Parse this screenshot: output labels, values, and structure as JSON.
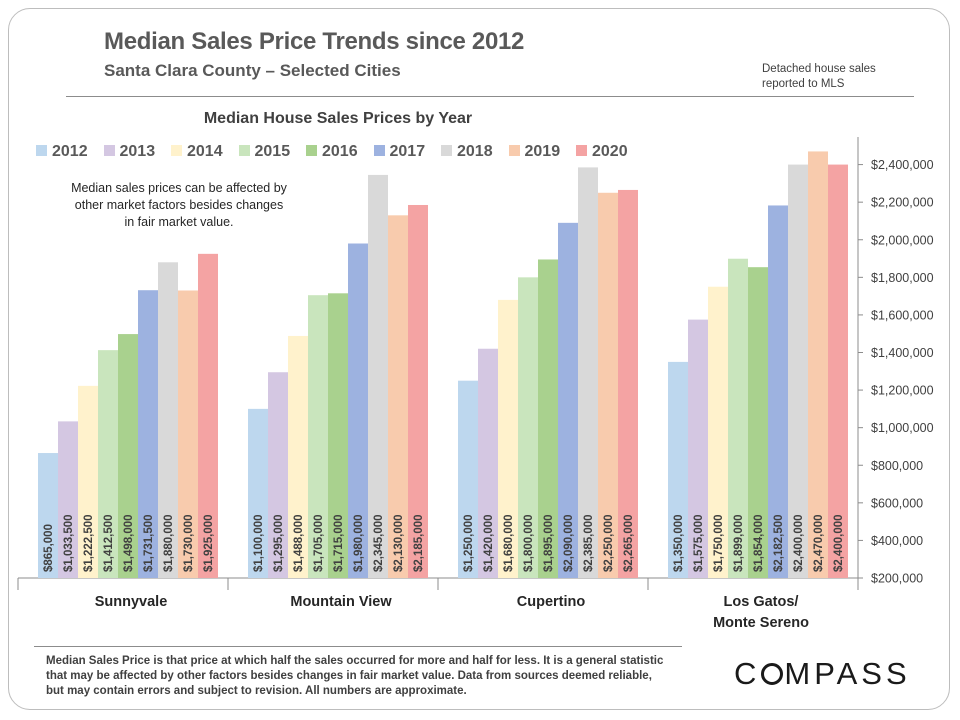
{
  "header": {
    "title": "Median Sales Price Trends since 2012",
    "subtitle": "Santa Clara County – Selected Cities",
    "note_line1": "Detached house sales",
    "note_line2": "reported to MLS"
  },
  "annotation": {
    "line1": "Median sales prices can be affected by",
    "line2": "other market factors besides changes",
    "line3": "in fair market value."
  },
  "footer": {
    "footnote": "Median Sales Price is that price at which half the sales occurred for more and half for less. It is a general statistic that may be affected by other factors besides changes in fair market value. Data from sources deemed reliable, but may contain errors and subject to revision.  All numbers are approximate.",
    "brand": "COMPASS"
  },
  "chart_data": {
    "type": "bar",
    "title": "Median House Sales Prices by Year",
    "categories": [
      "Sunnyvale",
      "Mountain View",
      "Cupertino",
      "Los Gatos/\nMonte Sereno"
    ],
    "series": [
      {
        "name": "2012",
        "color": "#bdd7ee",
        "values": [
          865000,
          1100000,
          1250000,
          1350000
        ],
        "labels": [
          "$865,000",
          "$1,100,000",
          "$1,250,000",
          "$1,350,000"
        ]
      },
      {
        "name": "2013",
        "color": "#d4c7e2",
        "values": [
          1033500,
          1295000,
          1420000,
          1575000
        ],
        "labels": [
          "$1,033,500",
          "$1,295,000",
          "$1,420,000",
          "$1,575,000"
        ]
      },
      {
        "name": "2014",
        "color": "#fff2cc",
        "values": [
          1222500,
          1488000,
          1680000,
          1750000
        ],
        "labels": [
          "$1,222,500",
          "$1,488,000",
          "$1,680,000",
          "$1,750,000"
        ]
      },
      {
        "name": "2015",
        "color": "#c9e5bd",
        "values": [
          1412500,
          1705000,
          1800000,
          1899000
        ],
        "labels": [
          "$1,412,500",
          "$1,705,000",
          "$1,800,000",
          "$1,899,000"
        ]
      },
      {
        "name": "2016",
        "color": "#a9d18e",
        "values": [
          1498000,
          1715000,
          1895000,
          1854000
        ],
        "labels": [
          "$1,498,000",
          "$1,715,000",
          "$1,895,000",
          "$1,854,000"
        ]
      },
      {
        "name": "2017",
        "color": "#9db2e0",
        "values": [
          1731500,
          1980000,
          2090000,
          2182500
        ],
        "labels": [
          "$1,731,500",
          "$1,980,000",
          "$2,090,000",
          "$2,182,500"
        ]
      },
      {
        "name": "2018",
        "color": "#d9d9d9",
        "values": [
          1880000,
          2345000,
          2385000,
          2400000
        ],
        "labels": [
          "$1,880,000",
          "$2,345,000",
          "$2,385,000",
          "$2,400,000"
        ]
      },
      {
        "name": "2019",
        "color": "#f8cbad",
        "values": [
          1730000,
          2130000,
          2250000,
          2470000
        ],
        "labels": [
          "$1,730,000",
          "$2,130,000",
          "$2,250,000",
          "$2,470,000"
        ]
      },
      {
        "name": "2020",
        "color": "#f4a3a3",
        "values": [
          1925000,
          2185000,
          2265000,
          2400000
        ],
        "labels": [
          "$1,925,000",
          "$2,185,000",
          "$2,265,000",
          "$2,400,000"
        ]
      }
    ],
    "ylim": [
      200000,
      2600000
    ],
    "yticks": [
      200000,
      400000,
      600000,
      800000,
      1000000,
      1200000,
      1400000,
      1600000,
      1800000,
      2000000,
      2200000,
      2400000
    ],
    "ytick_labels": [
      "$200,000",
      "$400,000",
      "$600,000",
      "$800,000",
      "$1,000,000",
      "$1,200,000",
      "$1,400,000",
      "$1,600,000",
      "$1,800,000",
      "$2,000,000",
      "$2,200,000",
      "$2,400,000"
    ],
    "y_axis_side": "right",
    "grid": false,
    "legend_position": "top"
  }
}
